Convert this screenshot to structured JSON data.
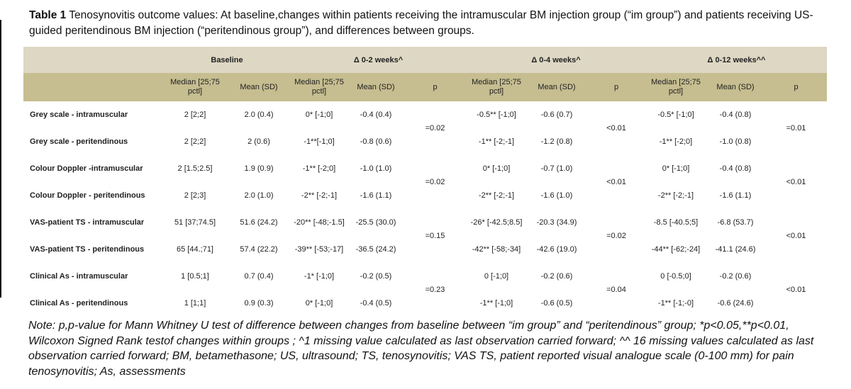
{
  "caption": {
    "label": "Table 1",
    "text": "Tenosynovitis outcome values: At baseline,changes within patients receiving the intramuscular BM injection group (“im group”) and  patients receiving US-guided peritendinous BM injection (“peritendinous group”), and differences between groups."
  },
  "table": {
    "header_groups": [
      {
        "label": "Baseline",
        "colspan": 2
      },
      {
        "label": "Δ 0-2 weeks^",
        "colspan": 3
      },
      {
        "label": "Δ 0-4 weeks^",
        "colspan": 3
      },
      {
        "label": "Δ 0-12 weeks^^",
        "colspan": 3
      }
    ],
    "subheaders": [
      "Median [25;75 pctl]",
      "Mean (SD)",
      "Median [25;75 pctl]",
      "Mean (SD)",
      "p",
      "Median [25;75 pctl]",
      "Mean (SD)",
      "p",
      "Median [25;75 pctl]",
      "Mean (SD)",
      "p"
    ],
    "groups": [
      {
        "rows": [
          {
            "label": "Grey scale - intramuscular",
            "baseline_median": "2 [2;2]",
            "baseline_mean": "2.0 (0.4)",
            "d02_median": "0* [-1;0]",
            "d02_mean": "-0.4 (0.4)",
            "d04_median": "-0.5** [-1;0]",
            "d04_mean": "-0.6 (0.7)",
            "d12_median": "-0.5* [-1;0]",
            "d12_mean": "-0.4 (0.8)"
          },
          {
            "label": "Grey scale - peritendinous",
            "baseline_median": "2 [2;2]",
            "baseline_mean": "2 (0.6)",
            "d02_median": "-1**[-1;0]",
            "d02_mean": "-0.8 (0.6)",
            "d04_median": "-1** [-2;-1]",
            "d04_mean": "-1.2 (0.8)",
            "d12_median": "-1** [-2;0]",
            "d12_mean": "-1.0 (0.8)"
          }
        ],
        "p02": "=0.02",
        "p04": "<0.01",
        "p12": "=0.01"
      },
      {
        "rows": [
          {
            "label": "Colour Doppler -intramuscular",
            "baseline_median": "2 [1.5;2.5]",
            "baseline_mean": "1.9 (0.9)",
            "d02_median": "-1** [-2;0]",
            "d02_mean": "-1.0 (1.0)",
            "d04_median": "0* [-1;0]",
            "d04_mean": "-0.7 (1.0)",
            "d12_median": "0* [-1;0]",
            "d12_mean": "-0.4 (0.8)"
          },
          {
            "label": "Colour Doppler - peritendinous",
            "baseline_median": "2 [2;3]",
            "baseline_mean": "2.0 (1.0)",
            "d02_median": "-2** [-2;-1]",
            "d02_mean": "-1.6 (1.1)",
            "d04_median": "-2** [-2;-1]",
            "d04_mean": "-1.6 (1.0)",
            "d12_median": "-2** [-2;-1]",
            "d12_mean": "-1.6 (1.1)"
          }
        ],
        "p02": "=0.02",
        "p04": "<0.01",
        "p12": "<0.01"
      },
      {
        "rows": [
          {
            "label": "VAS-patient TS - intramuscular",
            "baseline_median": "51 [37;74.5]",
            "baseline_mean": "51.6 (24.2)",
            "d02_median": "-20** [-48;-1.5]",
            "d02_mean": "-25.5 (30.0)",
            "d04_median": "-26* [-42.5;8.5]",
            "d04_mean": "-20.3 (34.9)",
            "d12_median": "-8.5 [-40.5;5]",
            "d12_mean": "-6.8 (53.7)"
          },
          {
            "label": "VAS-patient TS - peritendinous",
            "baseline_median": "65 [44.;71]",
            "baseline_mean": "57.4 (22.2)",
            "d02_median": "-39** [-53;-17]",
            "d02_mean": "-36.5 (24.2)",
            "d04_median": "-42** [-58;-34]",
            "d04_mean": "-42.6 (19.0)",
            "d12_median": "-44** [-62;-24]",
            "d12_mean": "-41.1 (24.6)"
          }
        ],
        "p02": "=0.15",
        "p04": "=0.02",
        "p12": "<0.01"
      },
      {
        "rows": [
          {
            "label": "Clinical As - intramuscular",
            "baseline_median": "1 [0.5;1]",
            "baseline_mean": "0.7 (0.4)",
            "d02_median": "-1* [-1;0]",
            "d02_mean": "-0.2 (0.5)",
            "d04_median": "0 [-1;0]",
            "d04_mean": "-0.2 (0.6)",
            "d12_median": "0 [-0.5;0]",
            "d12_mean": "-0.2 (0.6)"
          },
          {
            "label": "Clinical As - peritendinous",
            "baseline_median": "1 [1;1]",
            "baseline_mean": "0.9 (0.3)",
            "d02_median": "0* [-1;0]",
            "d02_mean": "-0.4 (0.5)",
            "d04_median": "-1** [-1;0]",
            "d04_mean": "-0.6 (0.5)",
            "d12_median": "-1** [-1;-0]",
            "d12_mean": "-0.6 (24.6)"
          }
        ],
        "p02": "=0.23",
        "p04": "=0.04",
        "p12": "<0.01"
      }
    ]
  },
  "note": "Note: p,p-value for  Mann Whitney U test of difference between changes from baseline between “im group” and “peritendinous” group; *p<0.05,**p<0.01, Wilcoxon Signed Rank testof changes within groups ;  ^1 missing value calculated as last observation carried forward;  ^^ 16 missing values calculated as last observation carried forward; BM, betamethasone; US, ultrasound; TS, tenosynovitis; VAS TS, patient reported visual analogue scale (0-100 mm) for pain tenosynovitis; As, assessments",
  "colors": {
    "header_light": "#ddd7c3",
    "header_dark": "#c6bd90",
    "body_bg": "#ffffff",
    "text": "#1c1c1c"
  }
}
